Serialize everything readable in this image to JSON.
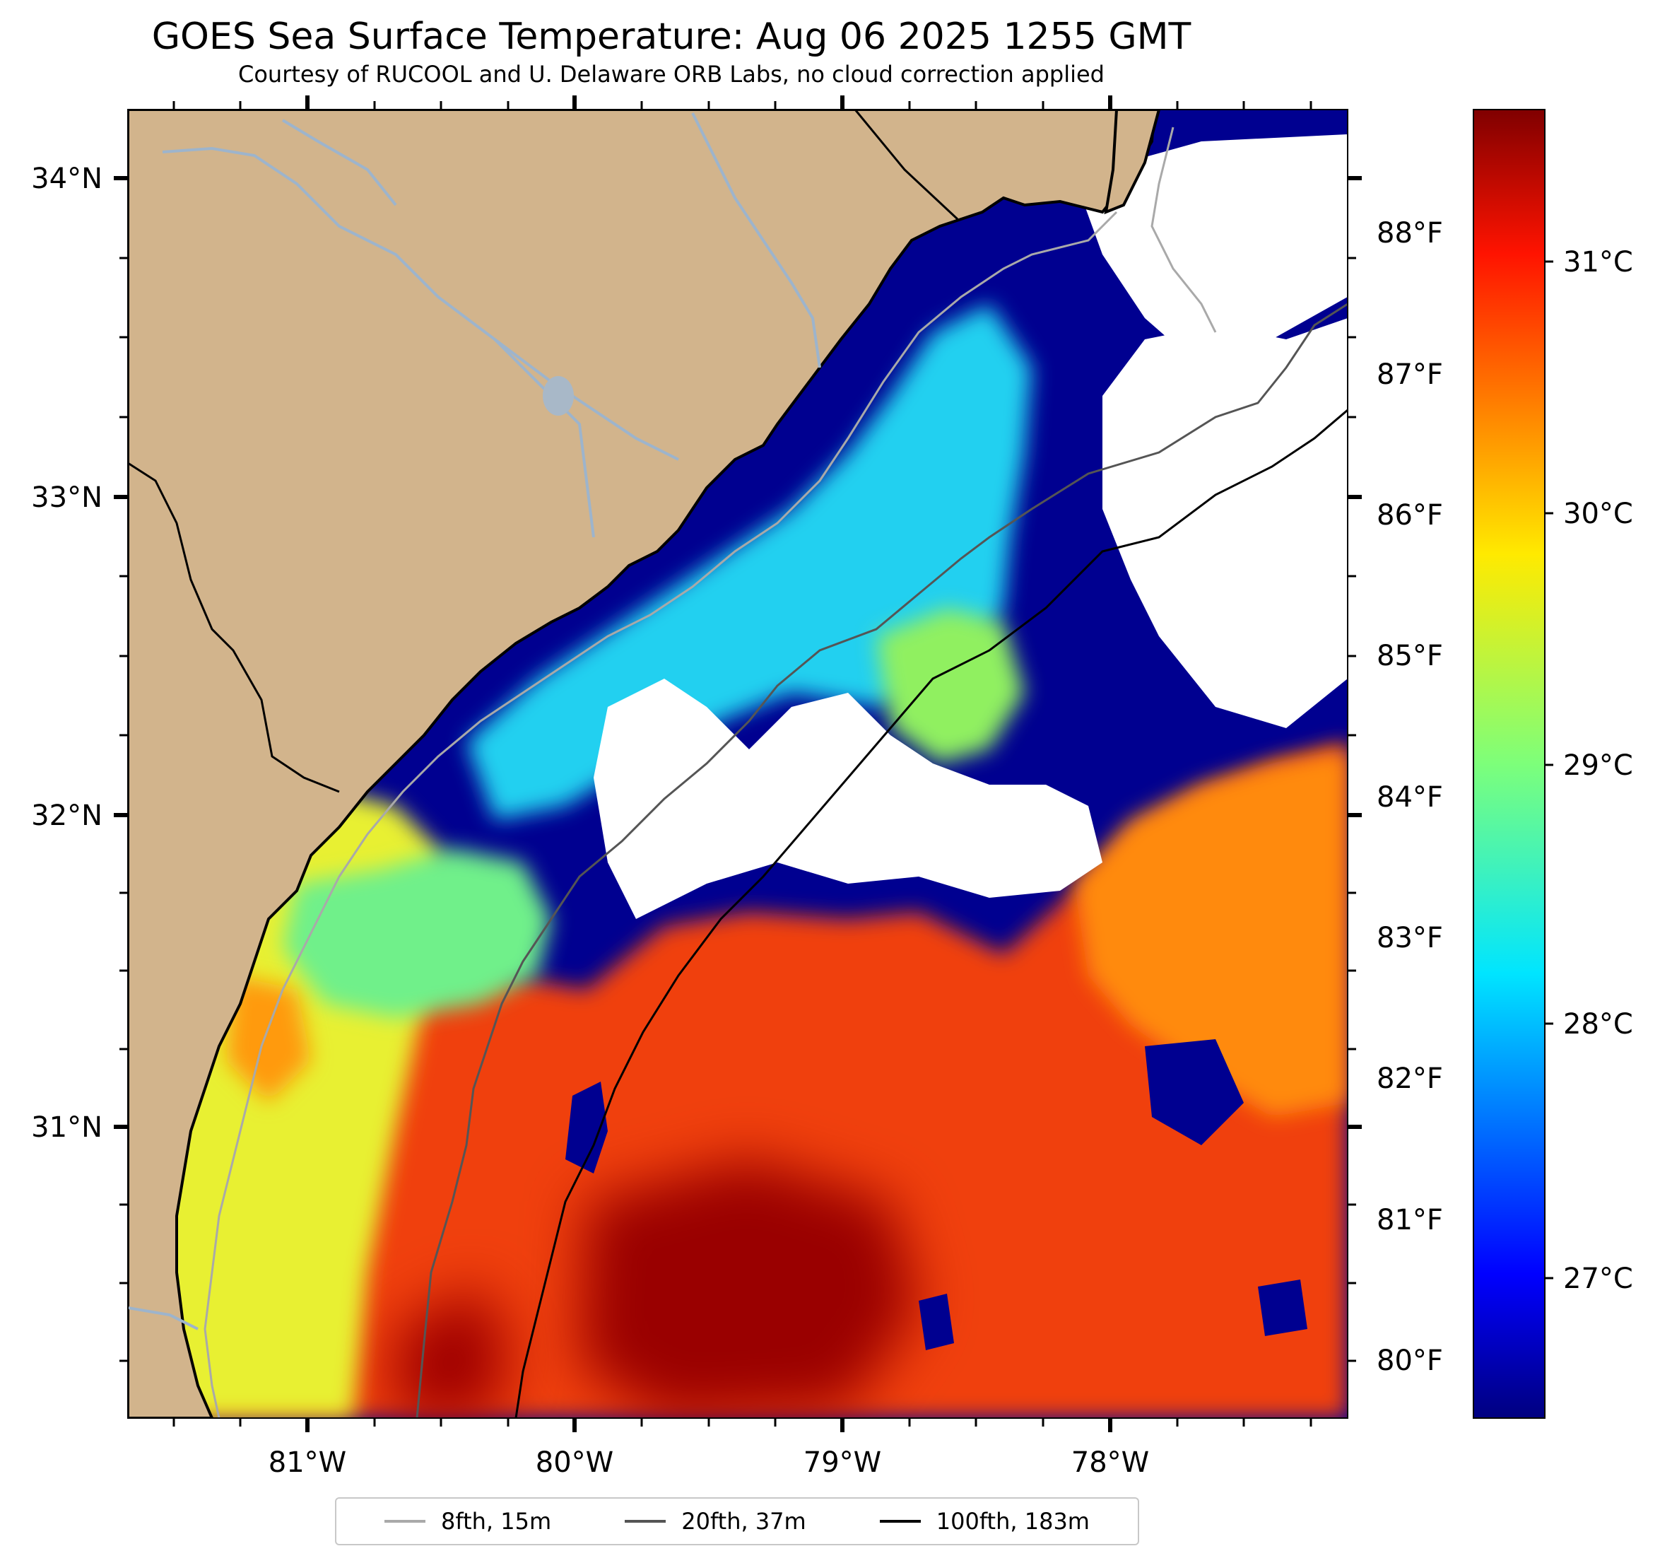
{
  "title": "GOES Sea Surface Temperature: Aug 06 2025 1255 GMT",
  "subtitle": "Courtesy of RUCOOL and U. Delaware ORB Labs, no cloud correction applied",
  "map": {
    "lon_range": [
      -81.67,
      -77.12
    ],
    "lat_range": [
      30.08,
      34.22
    ],
    "land_color": "#d2b48c",
    "ocean_missing_color": "#ffffff",
    "coastline_color": "#000000",
    "river_color": "#9db4cc",
    "lon_ticks": [
      "81°W",
      "80°W",
      "79°W",
      "78°W"
    ],
    "lat_ticks": [
      "34°N",
      "33°N",
      "32°N",
      "31°N"
    ]
  },
  "colorbar": {
    "colormap": "jet",
    "celsius_range": [
      26.5,
      31.7
    ],
    "celsius_ticks": [
      "31°C",
      "30°C",
      "29°C",
      "28°C",
      "27°C"
    ],
    "fahrenheit_ticks": [
      "88°F",
      "87°F",
      "86°F",
      "85°F",
      "84°F",
      "83°F",
      "82°F",
      "81°F",
      "80°F"
    ]
  },
  "legend": {
    "items": [
      {
        "label": "8fth, 15m",
        "color": "#a9a9a9"
      },
      {
        "label": "20fth, 37m",
        "color": "#555555"
      },
      {
        "label": "100fth, 183m",
        "color": "#000000"
      }
    ]
  }
}
